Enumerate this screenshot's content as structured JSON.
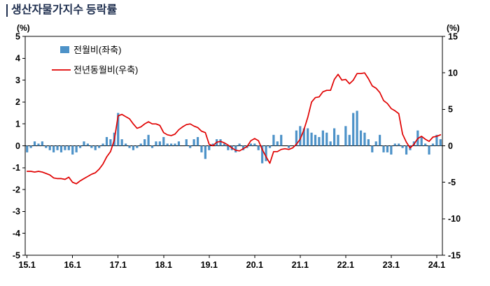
{
  "title": "생산자물가지수 등락률",
  "axes": {
    "left_unit": "(%)",
    "right_unit": "(%)",
    "left_ticks": [
      5,
      4,
      3,
      2,
      1,
      0,
      -1,
      -2,
      -3,
      -4,
      -5
    ],
    "right_ticks": [
      15,
      10,
      5,
      0,
      -5,
      -10,
      -15
    ]
  },
  "legend": [
    {
      "label": "전월비(좌축)",
      "type": "bar",
      "color": "#4d92c8"
    },
    {
      "label": "전년동월비(우축)",
      "type": "line",
      "color": "#e00000"
    }
  ],
  "chart_data": {
    "type": "bar+line",
    "start_month": "2015.1",
    "x_tick_labels": [
      "15.1",
      "16.1",
      "17.1",
      "18.1",
      "19.1",
      "20.1",
      "21.1",
      "22.1",
      "23.1",
      "24.1"
    ],
    "x_tick_month_index": [
      0,
      12,
      24,
      36,
      48,
      60,
      72,
      84,
      96,
      108
    ],
    "left_ylim": [
      -5,
      5
    ],
    "right_ylim": [
      -15,
      15
    ],
    "series": [
      {
        "name": "전월비(좌축)",
        "type": "bar",
        "axis": "left",
        "color": "#4d92c8",
        "values": [
          -0.3,
          -0.1,
          0.2,
          0.1,
          0.2,
          -0.1,
          -0.2,
          -0.3,
          -0.2,
          -0.3,
          -0.2,
          -0.2,
          -0.4,
          -0.3,
          -0.1,
          0.2,
          0.1,
          -0.1,
          -0.2,
          -0.1,
          0.1,
          0.4,
          0.3,
          0.6,
          1.5,
          0.3,
          0.1,
          -0.1,
          -0.2,
          -0.1,
          0.1,
          0.3,
          0.5,
          -0.1,
          0.2,
          0.2,
          0.4,
          0.1,
          0.1,
          0.1,
          0.2,
          0.0,
          0.3,
          -0.1,
          0.3,
          0.4,
          -0.3,
          -0.6,
          -0.2,
          0.1,
          0.3,
          0.3,
          0.1,
          -0.2,
          -0.2,
          -0.3,
          0.1,
          -0.2,
          -0.1,
          0.1,
          0.1,
          -0.2,
          -0.8,
          -0.7,
          -0.1,
          0.5,
          0.2,
          0.5,
          0.0,
          -0.1,
          0.0,
          0.7,
          0.9,
          0.8,
          0.8,
          0.6,
          0.5,
          0.4,
          0.7,
          0.6,
          0.2,
          0.8,
          0.5,
          0.0,
          0.9,
          0.5,
          1.5,
          1.6,
          0.7,
          0.6,
          0.3,
          -0.3,
          0.2,
          0.5,
          -0.3,
          -0.3,
          -0.4,
          0.1,
          0.1,
          -0.1,
          -0.4,
          -0.2,
          0.2,
          0.7,
          0.4,
          0.1,
          -0.4,
          0.1,
          0.5,
          0.3
        ]
      },
      {
        "name": "전년동월비(우축)",
        "type": "line",
        "axis": "right",
        "color": "#e00000",
        "values": [
          -3.5,
          -3.5,
          -3.6,
          -3.5,
          -3.6,
          -3.8,
          -4.0,
          -4.4,
          -4.5,
          -4.5,
          -4.6,
          -4.3,
          -5.0,
          -5.2,
          -4.8,
          -4.5,
          -4.2,
          -3.9,
          -3.7,
          -3.2,
          -2.5,
          -1.5,
          -0.8,
          0.8,
          4.1,
          4.3,
          4.0,
          3.7,
          3.0,
          2.4,
          2.6,
          3.0,
          3.3,
          3.0,
          3.0,
          2.8,
          1.8,
          1.5,
          1.4,
          1.6,
          2.2,
          2.6,
          2.9,
          3.0,
          2.7,
          2.5,
          2.0,
          1.8,
          0.2,
          0.0,
          0.5,
          0.6,
          0.4,
          0.1,
          -0.3,
          -0.6,
          -0.7,
          -0.4,
          -0.1,
          0.7,
          1.0,
          0.7,
          -0.5,
          -1.5,
          -2.4,
          -0.8,
          -0.8,
          -0.5,
          -0.4,
          -0.5,
          -0.3,
          0.2,
          0.9,
          2.2,
          3.9,
          6.0,
          6.6,
          6.7,
          7.4,
          7.6,
          7.6,
          9.1,
          9.8,
          9.0,
          9.1,
          8.5,
          9.0,
          9.9,
          9.9,
          10.0,
          9.2,
          8.2,
          7.9,
          7.3,
          6.2,
          5.8,
          5.1,
          4.8,
          4.4,
          1.6,
          0.5,
          -0.3,
          0.2,
          1.0,
          1.3,
          0.9,
          0.6,
          1.2,
          1.3,
          1.5
        ]
      }
    ]
  }
}
